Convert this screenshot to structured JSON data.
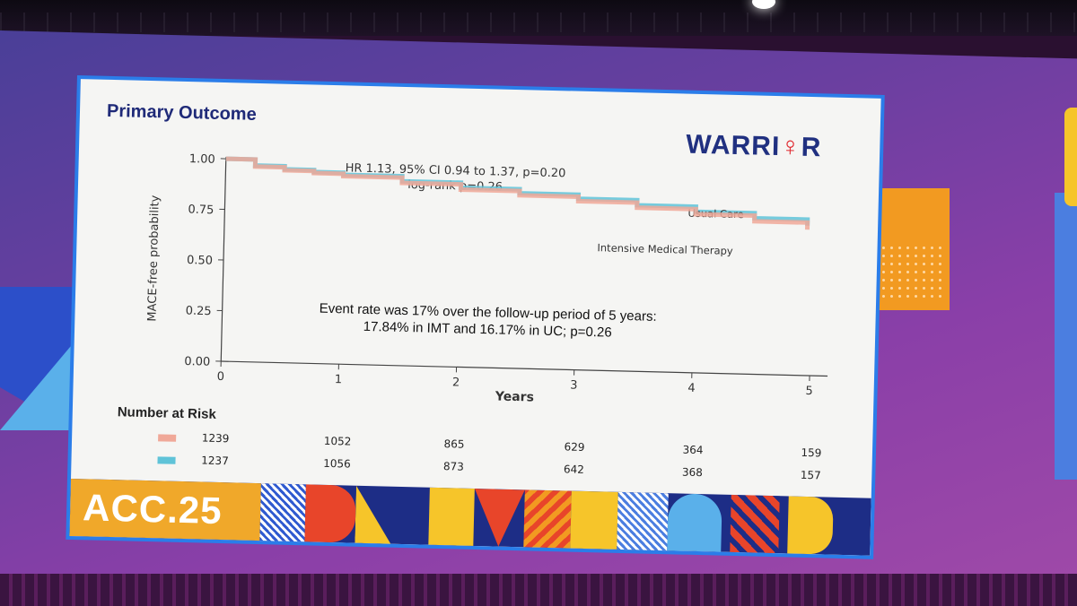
{
  "slide": {
    "title": "Primary Outcome",
    "logo_text_1": "WARRI",
    "logo_symbol": "♀",
    "logo_text_2": "R",
    "banner_text": "ACC.25"
  },
  "chart_data": {
    "type": "line",
    "title": "",
    "xlabel": "Years",
    "ylabel": "MACE-free probability",
    "xlim": [
      0,
      5
    ],
    "ylim": [
      0,
      1
    ],
    "x_ticks": [
      "0",
      "1",
      "2",
      "3",
      "4",
      "5"
    ],
    "y_ticks": [
      "0.00",
      "0.25",
      "0.50",
      "0.75",
      "1.00"
    ],
    "annotation_hr": "HR 1.13, 95% CI 0.94 to 1.37, p=0.20",
    "annotation_logrank": "log-rank p=0.26",
    "event_text_1": "Event rate was 17% over the follow-up period of 5 years:",
    "event_text_2": "17.84% in IMT and 16.17% in UC; p=0.26",
    "series": [
      {
        "name": "Usual Care",
        "color": "#5fc3d8",
        "x": [
          0,
          0.25,
          0.5,
          0.75,
          1,
          1.5,
          2,
          2.5,
          3,
          3.5,
          4,
          4.5,
          4.95
        ],
        "y": [
          1.0,
          0.97,
          0.955,
          0.945,
          0.935,
          0.91,
          0.885,
          0.865,
          0.845,
          0.82,
          0.795,
          0.77,
          0.74
        ]
      },
      {
        "name": "Intensive Medical Therapy",
        "color": "#f0a898",
        "x": [
          0,
          0.25,
          0.5,
          0.75,
          1,
          1.5,
          2,
          2.5,
          3,
          3.5,
          4,
          4.5,
          4.95
        ],
        "y": [
          1.0,
          0.965,
          0.95,
          0.94,
          0.928,
          0.902,
          0.876,
          0.855,
          0.833,
          0.808,
          0.783,
          0.755,
          0.72
        ]
      }
    ],
    "number_at_risk": {
      "label": "Number at Risk",
      "rows": [
        {
          "color": "#f0a898",
          "values": [
            "1239",
            "1052",
            "865",
            "629",
            "364",
            "159"
          ]
        },
        {
          "color": "#5fc3d8",
          "values": [
            "1237",
            "1056",
            "873",
            "642",
            "368",
            "157"
          ]
        }
      ]
    }
  }
}
